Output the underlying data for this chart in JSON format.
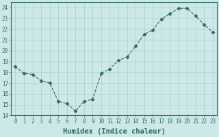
{
  "xlabel": "Humidex (Indice chaleur)",
  "ylabel": "",
  "x": [
    0,
    1,
    2,
    3,
    4,
    5,
    6,
    7,
    8,
    9,
    10,
    11,
    12,
    13,
    14,
    15,
    16,
    17,
    18,
    19,
    20,
    21,
    22,
    23
  ],
  "y": [
    18.5,
    17.9,
    17.8,
    17.2,
    17.0,
    15.3,
    15.1,
    14.4,
    15.3,
    15.5,
    17.9,
    18.3,
    19.1,
    19.4,
    20.4,
    21.5,
    21.9,
    22.9,
    23.4,
    23.9,
    23.9,
    23.2,
    22.4,
    21.7
  ],
  "line_color": "#2e6b5e",
  "marker": "D",
  "marker_size": 2.5,
  "bg_color": "#cce8e8",
  "grid_color": "#aacece",
  "ylim": [
    14,
    24.5
  ],
  "yticks": [
    14,
    15,
    16,
    17,
    18,
    19,
    20,
    21,
    22,
    23,
    24
  ],
  "xticks": [
    0,
    1,
    2,
    3,
    4,
    5,
    6,
    7,
    8,
    9,
    10,
    11,
    12,
    13,
    14,
    15,
    16,
    17,
    18,
    19,
    20,
    21,
    22,
    23
  ],
  "tick_fontsize": 5.5,
  "xlabel_fontsize": 7.5,
  "linewidth": 0.8
}
